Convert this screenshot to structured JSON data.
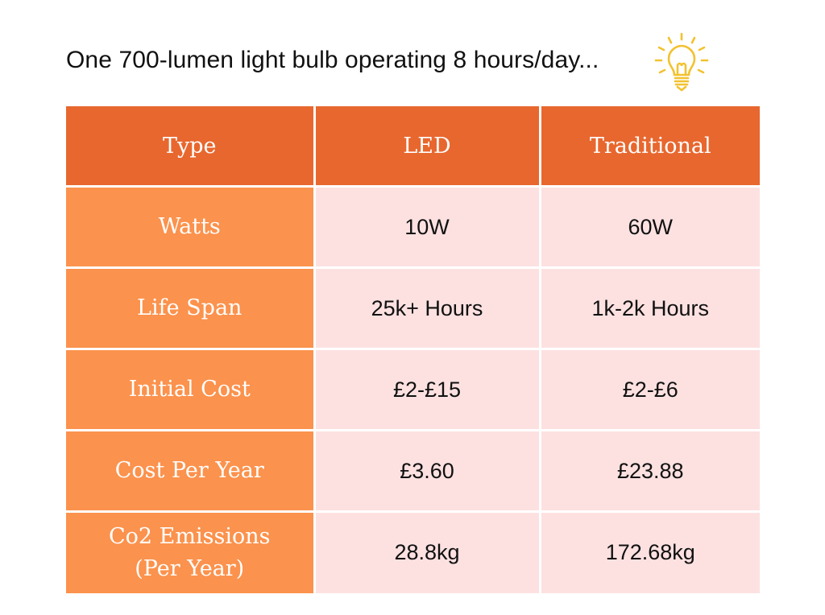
{
  "title": "One 700-lumen light bulb operating 8 hours/day...",
  "icon": "lightbulb-icon",
  "colors": {
    "header": "#e8672e",
    "row_label": "#fb924d",
    "cell": "#fde1e1",
    "icon": "#f2c230"
  },
  "table": {
    "headers": [
      "Type",
      "LED",
      "Traditional"
    ],
    "rows": [
      {
        "label": "Watts",
        "led": "10W",
        "traditional": "60W"
      },
      {
        "label": "Life Span",
        "led": "25k+ Hours",
        "traditional": "1k-2k Hours"
      },
      {
        "label": "Initial Cost",
        "led": "£2-£15",
        "traditional": "£2-£6"
      },
      {
        "label": "Cost Per Year",
        "led": "£3.60",
        "traditional": "£23.88"
      },
      {
        "label_line1": "Co2 Emissions",
        "label_line2": "(Per Year)",
        "led": "28.8kg",
        "traditional": "172.68kg"
      }
    ]
  }
}
